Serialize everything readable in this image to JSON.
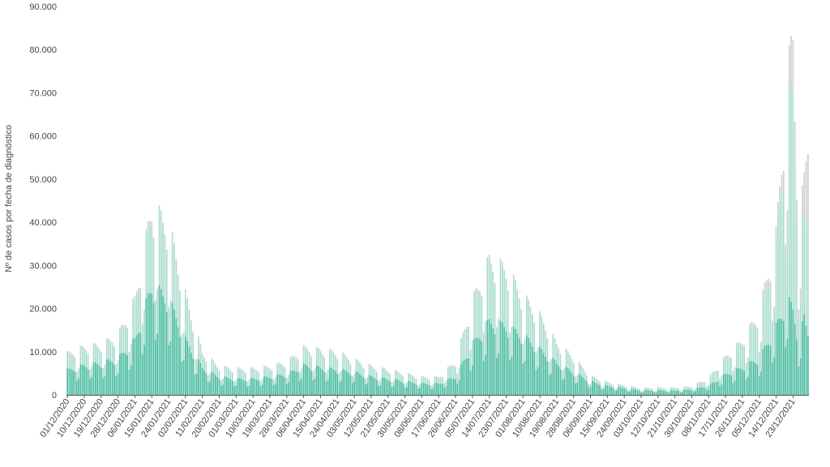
{
  "chart_data": {
    "type": "bar",
    "stacked": true,
    "ylabel": "Nº de casos por fecha de diagnóstico",
    "ylim": [
      0,
      90000
    ],
    "y_ticks": [
      0,
      10000,
      20000,
      30000,
      40000,
      50000,
      60000,
      70000,
      80000,
      90000
    ],
    "y_tick_labels": [
      "0",
      "10.000",
      "20.000",
      "30.000",
      "40.000",
      "50.000",
      "60.000",
      "70.000",
      "80.000",
      "90.000"
    ],
    "x_start": "2020-12-01",
    "x_end": "2021-12-31",
    "x_tick_labels": [
      "01/12/2020",
      "10/12/2020",
      "19/12/2020",
      "28/12/2020",
      "06/01/2021",
      "15/01/2021",
      "24/01/2021",
      "02/02/2021",
      "11/02/2021",
      "20/02/2021",
      "01/03/2021",
      "10/03/2021",
      "19/03/2021",
      "28/03/2021",
      "06/04/2021",
      "15/04/2021",
      "24/04/2021",
      "03/05/2021",
      "12/05/2021",
      "21/05/2021",
      "30/05/2021",
      "08/06/2021",
      "17/06/2021",
      "26/06/2021",
      "05/07/2021",
      "14/07/2021",
      "23/07/2021",
      "01/08/2021",
      "10/08/2021",
      "19/08/2021",
      "28/08/2021",
      "06/09/2021",
      "15/09/2021",
      "24/09/2021",
      "03/10/2021",
      "12/10/2021",
      "21/10/2021",
      "30/10/2021",
      "08/11/2021",
      "17/11/2021",
      "26/11/2021",
      "05/12/2021",
      "14/12/2021",
      "23/12/2021"
    ],
    "grid": false,
    "legend": "none",
    "series_colors": [
      "#45b99d",
      "#a8dccd",
      "#cfcfcf"
    ],
    "trend_points": {
      "dates": [
        "2020-12-01",
        "2020-12-10",
        "2020-12-19",
        "2020-12-28",
        "2021-01-06",
        "2021-01-15",
        "2021-01-24",
        "2021-02-02",
        "2021-02-11",
        "2021-02-20",
        "2021-03-01",
        "2021-03-10",
        "2021-03-19",
        "2021-03-28",
        "2021-04-06",
        "2021-04-15",
        "2021-04-24",
        "2021-05-03",
        "2021-05-12",
        "2021-05-21",
        "2021-05-30",
        "2021-06-08",
        "2021-06-17",
        "2021-06-26",
        "2021-07-05",
        "2021-07-14",
        "2021-07-23",
        "2021-08-01",
        "2021-08-10",
        "2021-08-19",
        "2021-08-28",
        "2021-09-06",
        "2021-09-15",
        "2021-09-24",
        "2021-10-03",
        "2021-10-12",
        "2021-10-21",
        "2021-10-30",
        "2021-11-08",
        "2021-11-17",
        "2021-11-26",
        "2021-12-05",
        "2021-12-14",
        "2021-12-20",
        "2021-12-23",
        "2021-12-26",
        "2021-12-29",
        "2021-12-31"
      ],
      "series_1": [
        5500,
        6500,
        7000,
        8000,
        12000,
        24000,
        21000,
        12000,
        6000,
        4000,
        3500,
        3500,
        4000,
        4500,
        6500,
        6000,
        5500,
        5000,
        4000,
        3500,
        3000,
        2500,
        2500,
        4000,
        11000,
        16000,
        15000,
        13000,
        10000,
        7000,
        5000,
        3000,
        2000,
        1500,
        1000,
        1000,
        1000,
        1200,
        2000,
        4500,
        6000,
        8000,
        15000,
        21000,
        19000,
        12000,
        17000,
        14000
      ],
      "series_2": [
        3000,
        3500,
        3500,
        4500,
        8000,
        16000,
        15000,
        9000,
        3000,
        2000,
        2000,
        2000,
        2000,
        2500,
        3500,
        3500,
        3500,
        2500,
        2000,
        1800,
        1500,
        1200,
        1200,
        3000,
        9000,
        13000,
        12000,
        8000,
        7000,
        4000,
        3000,
        1000,
        700,
        500,
        400,
        500,
        500,
        600,
        1500,
        3500,
        5500,
        9000,
        17000,
        42000,
        48000,
        20000,
        22000,
        25000
      ],
      "series_3": [
        500,
        500,
        500,
        500,
        800,
        1000,
        1000,
        800,
        300,
        200,
        200,
        200,
        200,
        200,
        300,
        300,
        300,
        200,
        200,
        200,
        200,
        200,
        200,
        300,
        500,
        500,
        500,
        500,
        300,
        300,
        200,
        100,
        100,
        100,
        100,
        100,
        100,
        100,
        200,
        300,
        500,
        1000,
        3000,
        6000,
        12000,
        4000,
        8000,
        18000
      ]
    }
  }
}
